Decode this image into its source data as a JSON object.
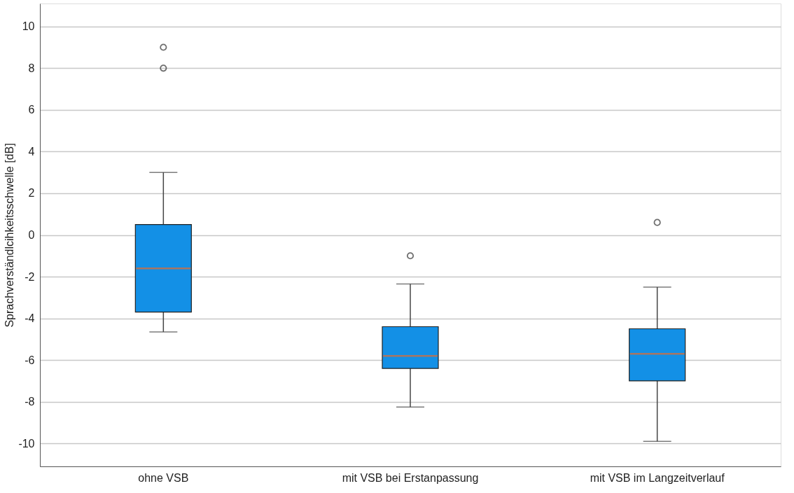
{
  "chart_data": {
    "type": "box",
    "ylabel": "Sprachverständlcihkeitsschwelle [dB]",
    "categories": [
      "ohne VSB",
      "mit VSB bei Erstanpassung",
      "mit VSB im Langzeitverlauf"
    ],
    "series": [
      {
        "color": "#1390e6",
        "boxes": [
          {
            "low": -4.65,
            "q1": -3.7,
            "median": -1.6,
            "q3": 0.5,
            "high": 3.0,
            "outliers": [
              8.0,
              9.0
            ]
          },
          {
            "low": -8.25,
            "q1": -6.4,
            "median": -5.8,
            "q3": -4.4,
            "high": -2.35,
            "outliers": [
              -1.0
            ]
          },
          {
            "low": -9.9,
            "q1": -7.0,
            "median": -5.7,
            "q3": -4.5,
            "high": -2.5,
            "outliers": [
              0.6
            ]
          }
        ]
      }
    ],
    "ylim": [
      -11.1,
      11.1
    ],
    "yticks": [
      -10,
      -8,
      -6,
      -4,
      -2,
      0,
      2,
      4,
      6,
      8,
      10
    ],
    "grid": "y"
  }
}
